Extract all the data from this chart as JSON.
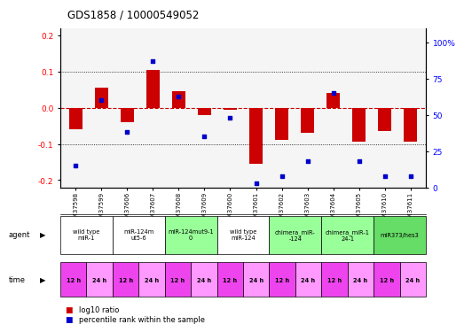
{
  "title": "GDS1858 / 10000549052",
  "samples": [
    "GSM37598",
    "GSM37599",
    "GSM37606",
    "GSM37607",
    "GSM37608",
    "GSM37609",
    "GSM37600",
    "GSM37601",
    "GSM37602",
    "GSM37603",
    "GSM37604",
    "GSM37605",
    "GSM37610",
    "GSM37611"
  ],
  "log10_ratio": [
    -0.06,
    0.055,
    -0.04,
    0.105,
    0.045,
    -0.02,
    -0.005,
    -0.155,
    -0.09,
    -0.07,
    0.04,
    -0.095,
    -0.065,
    -0.095
  ],
  "percentile_rank": [
    15,
    60,
    38,
    87,
    63,
    35,
    48,
    3,
    8,
    18,
    65,
    18,
    8,
    8
  ],
  "ylim": [
    -0.22,
    0.22
  ],
  "y2lim": [
    0,
    110
  ],
  "yticks": [
    -0.2,
    -0.1,
    0.0,
    0.1,
    0.2
  ],
  "y2ticks": [
    0,
    25,
    50,
    75,
    100
  ],
  "agent_groups": [
    {
      "label": "wild type\nmiR-1",
      "cols": [
        0,
        1
      ],
      "color": "#ffffff"
    },
    {
      "label": "miR-124m\nut5-6",
      "cols": [
        2,
        3
      ],
      "color": "#ffffff"
    },
    {
      "label": "miR-124mut9-1\n0",
      "cols": [
        4,
        5
      ],
      "color": "#99ff99"
    },
    {
      "label": "wild type\nmiR-124",
      "cols": [
        6,
        7
      ],
      "color": "#ffffff"
    },
    {
      "label": "chimera_miR-\n-124",
      "cols": [
        8,
        9
      ],
      "color": "#99ff99"
    },
    {
      "label": "chimera_miR-1\n24-1",
      "cols": [
        10,
        11
      ],
      "color": "#99ff99"
    },
    {
      "label": "miR373/hes3",
      "cols": [
        12,
        13
      ],
      "color": "#66dd66"
    }
  ],
  "time_colors_12": "#ee44ee",
  "time_colors_24": "#ff99ff",
  "bar_color": "#cc0000",
  "dot_color": "#0000cc",
  "hline_color": "#cc0000",
  "bg_color": "#ffffff"
}
